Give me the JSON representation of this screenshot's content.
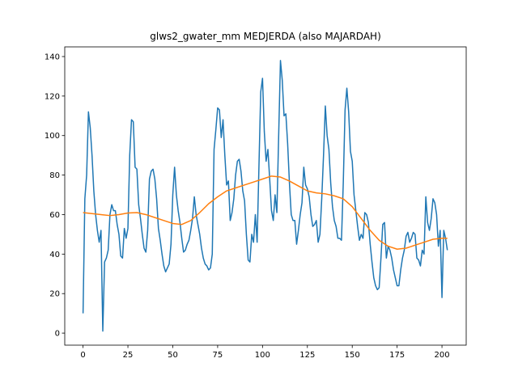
{
  "chart_data": {
    "type": "line",
    "title": "glws2_gwater_mm MEDJERDA (also MAJARDAH)",
    "xlim": [
      -10.2,
      213.5
    ],
    "ylim": [
      -6.1,
      144.9
    ],
    "xticks": [
      0,
      25,
      50,
      75,
      100,
      125,
      150,
      175,
      200
    ],
    "yticks": [
      0,
      20,
      40,
      60,
      80,
      100,
      120,
      140
    ],
    "series": [
      {
        "color": "#1f77b4",
        "x": [
          0,
          1,
          2,
          3,
          4,
          5,
          6,
          7,
          8,
          9,
          10,
          11,
          12,
          13,
          14,
          15,
          16,
          17,
          18,
          19,
          20,
          21,
          22,
          23,
          24,
          25,
          26,
          27,
          28,
          29,
          30,
          31,
          32,
          33,
          34,
          35,
          36,
          37,
          38,
          39,
          40,
          41,
          42,
          43,
          44,
          45,
          46,
          47,
          48,
          49,
          50,
          51,
          52,
          53,
          54,
          55,
          56,
          57,
          58,
          59,
          60,
          61,
          62,
          63,
          64,
          65,
          66,
          67,
          68,
          69,
          70,
          71,
          72,
          73,
          74,
          75,
          76,
          77,
          78,
          79,
          80,
          81,
          82,
          83,
          84,
          85,
          86,
          87,
          88,
          89,
          90,
          91,
          92,
          93,
          94,
          95,
          96,
          97,
          98,
          99,
          100,
          101,
          102,
          103,
          104,
          105,
          106,
          107,
          108,
          109,
          110,
          111,
          112,
          113,
          114,
          115,
          116,
          117,
          118,
          119,
          120,
          121,
          122,
          123,
          124,
          125,
          126,
          127,
          128,
          129,
          130,
          131,
          132,
          133,
          134,
          135,
          136,
          137,
          138,
          139,
          140,
          141,
          142,
          143,
          144,
          145,
          146,
          147,
          148,
          149,
          150,
          151,
          152,
          153,
          154,
          155,
          156,
          157,
          158,
          159,
          160,
          161,
          162,
          163,
          164,
          165,
          166,
          167,
          168,
          169,
          170,
          171,
          172,
          173,
          174,
          175,
          176,
          177,
          178,
          179,
          180,
          181,
          182,
          183,
          184,
          185,
          186,
          187,
          188,
          189,
          190,
          191,
          192,
          193,
          194,
          195,
          196,
          197,
          198,
          199,
          200,
          201,
          202,
          203
        ],
        "values": [
          10,
          68,
          80,
          112,
          104,
          90,
          72,
          60,
          52,
          46,
          52,
          1,
          36,
          38,
          42,
          60,
          65,
          62,
          62,
          55,
          50,
          39,
          38,
          53,
          48,
          53,
          90,
          108,
          107,
          84,
          83,
          65,
          58,
          50,
          43,
          41,
          52,
          78,
          82,
          83,
          78,
          68,
          53,
          47,
          40,
          34,
          31,
          33,
          35,
          45,
          70,
          84,
          70,
          62,
          56,
          48,
          41,
          42,
          45,
          47,
          52,
          58,
          69,
          60,
          55,
          50,
          43,
          38,
          35,
          34,
          32,
          33,
          40,
          93,
          103,
          114,
          113,
          99,
          108,
          90,
          75,
          77,
          57,
          61,
          68,
          80,
          87,
          88,
          82,
          72,
          67,
          50,
          37,
          36,
          50,
          46,
          60,
          46,
          84,
          122,
          129,
          102,
          87,
          93,
          78,
          62,
          57,
          70,
          61,
          100,
          138,
          128,
          110,
          111,
          96,
          76,
          60,
          57,
          57,
          45,
          52,
          60,
          66,
          84,
          75,
          73,
          69,
          60,
          54,
          55,
          57,
          46,
          50,
          68,
          90,
          115,
          100,
          93,
          76,
          64,
          57,
          54,
          48,
          48,
          47,
          76,
          113,
          124,
          112,
          92,
          87,
          70,
          62,
          54,
          47,
          50,
          48,
          61,
          60,
          56,
          45,
          36,
          28,
          24,
          22,
          23,
          38,
          55,
          56,
          38,
          44,
          42,
          38,
          32,
          28,
          24,
          24,
          32,
          38,
          42,
          49,
          51,
          46,
          48,
          51,
          50,
          38,
          37,
          34,
          42,
          40,
          69,
          56,
          52,
          58,
          68,
          66,
          60,
          44,
          52,
          18,
          52,
          48,
          42
        ]
      },
      {
        "color": "#ff7f0e",
        "x": [
          0,
          5,
          10,
          15,
          20,
          25,
          30,
          35,
          40,
          45,
          50,
          55,
          60,
          65,
          70,
          75,
          80,
          85,
          90,
          95,
          100,
          105,
          110,
          115,
          120,
          125,
          130,
          135,
          140,
          145,
          150,
          155,
          160,
          165,
          170,
          175,
          180,
          185,
          190,
          195,
          200,
          203
        ],
        "values": [
          61,
          60.5,
          60,
          59.5,
          60,
          60.8,
          61,
          60,
          58.5,
          57,
          55.5,
          55,
          57,
          61,
          65.5,
          69,
          72,
          73.5,
          75,
          76.5,
          78,
          79.5,
          79,
          77,
          74.5,
          72,
          71,
          70.5,
          69.5,
          68,
          64,
          58,
          52,
          47,
          44,
          42.5,
          43,
          44.5,
          46,
          47.5,
          48,
          48
        ]
      }
    ]
  }
}
